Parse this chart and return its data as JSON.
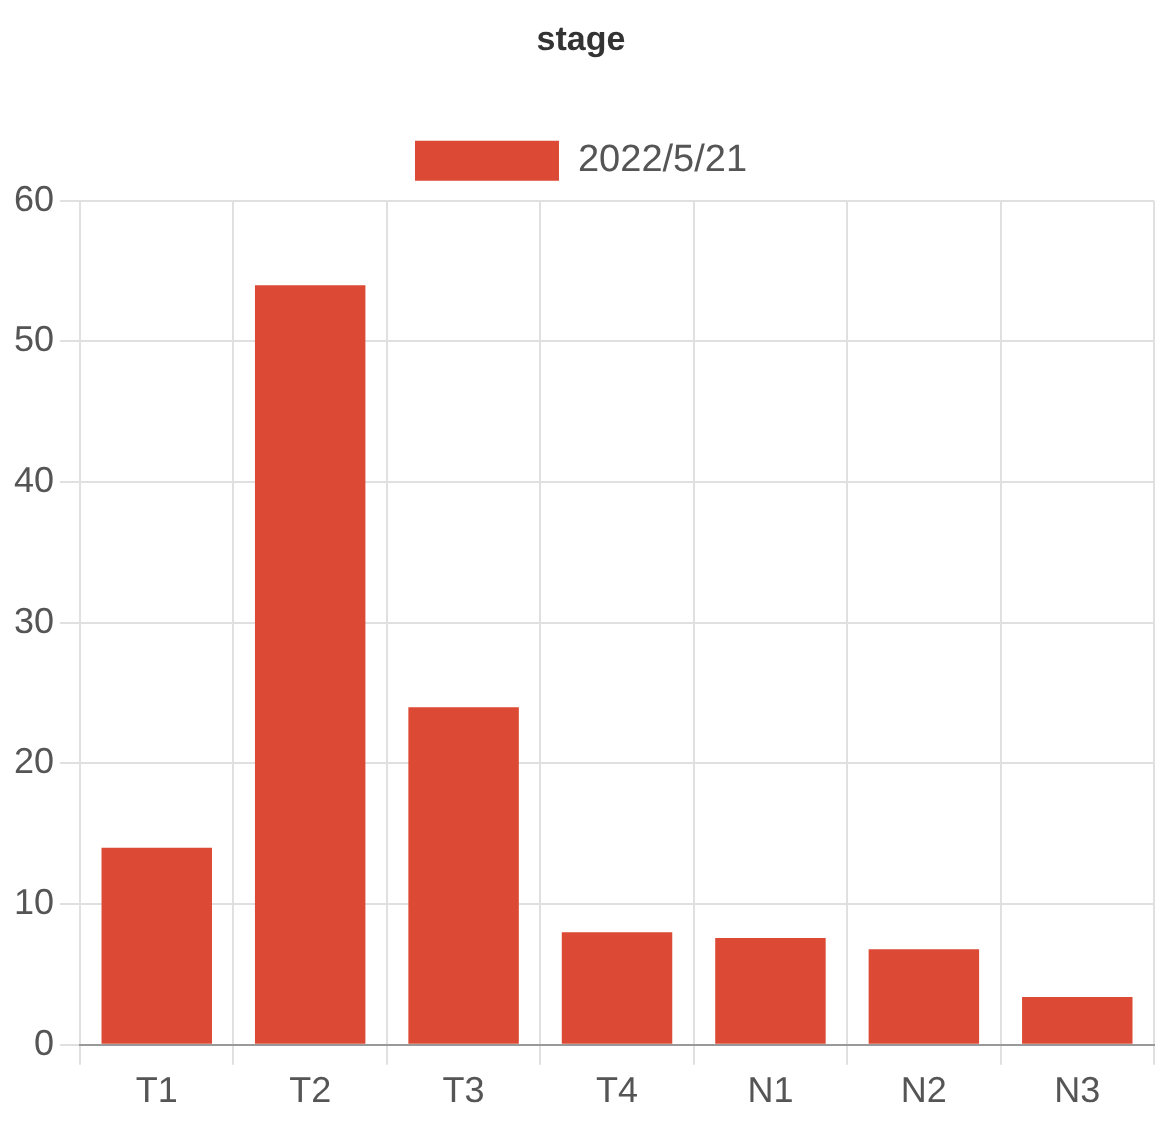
{
  "chart_data": {
    "type": "bar",
    "title": "stage",
    "categories": [
      "T1",
      "T2",
      "T3",
      "T4",
      "N1",
      "N2",
      "N3"
    ],
    "series": [
      {
        "name": "2022/5/21",
        "color": "#dc4a35",
        "values": [
          14,
          54,
          24,
          8,
          7.6,
          6.8,
          3.4
        ]
      }
    ],
    "ylim": [
      0,
      60
    ],
    "yticks": [
      0,
      10,
      20,
      30,
      40,
      50,
      60
    ],
    "grid": true,
    "legend": "top"
  }
}
